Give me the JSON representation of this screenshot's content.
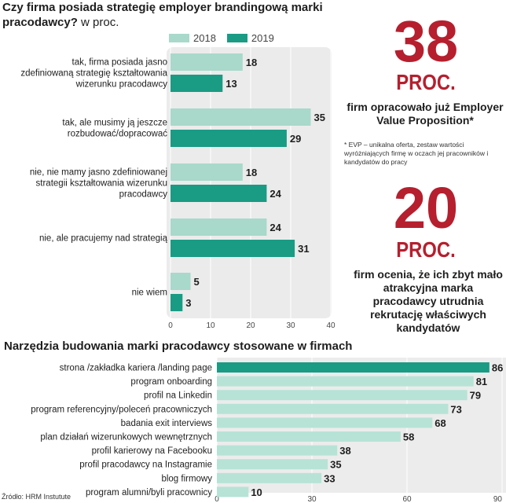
{
  "chart1_title": "Czy firma posiada strategię employer brandingową marki pracodawcy?",
  "chart1_unit": "w proc.",
  "chart2_title": "Narzędzia budowania marki pracodawcy stosowane w firmach",
  "stat1": {
    "number": "38",
    "unit": "PROC.",
    "text": "firm opracowało już Employer Value Proposition*"
  },
  "stat1_note": "* EVP – unikalna oferta, zestaw wartości wyróżniających firmę w oczach jej pracowników i kandydatów do pracy",
  "stat2": {
    "number": "20",
    "unit": "PROC.",
    "text": "firm ocenia, że ich zbyt mało atrakcyjna marka pracodawcy utrudnia rekrutację właściwych kandydatów"
  },
  "source": "Źródło: HRM Instutute",
  "colors": {
    "y2018": "#a8d9cb",
    "y2019": "#1a9b84",
    "red": "#b61f2e",
    "bar2": "#b7e3d6",
    "bar2_top": "#1a9b84"
  },
  "chart_data": [
    {
      "type": "bar",
      "orientation": "horizontal",
      "title": "Czy firma posiada strategię employer brandingową marki pracodawcy? w proc.",
      "categories": [
        [
          "tak, firma posiada jasno",
          "zdefiniowaną strategię kształtowania",
          "wizerunku pracodawcy"
        ],
        [
          "tak, ale musimy ją jeszcze",
          "rozbudować/dopracować"
        ],
        [
          "nie, nie mamy jasno zdefiniowanej",
          "strategii kształtowania wizerunku",
          "pracodawcy"
        ],
        [
          "nie, ale pracujemy nad strategią"
        ],
        [
          "nie wiem"
        ]
      ],
      "series": [
        {
          "name": "2018",
          "values": [
            18,
            35,
            18,
            24,
            5
          ]
        },
        {
          "name": "2019",
          "values": [
            13,
            29,
            24,
            31,
            3
          ]
        }
      ],
      "xlim": [
        0,
        40
      ],
      "xticks": [
        "0",
        "10",
        "20",
        "30",
        "40"
      ]
    },
    {
      "type": "bar",
      "orientation": "horizontal",
      "title": "Narzędzia budowania marki pracodawcy stosowane w firmach",
      "categories": [
        "strona /zakładka kariera /landing page",
        "program onboarding",
        "profil na Linkedin",
        "program referencyjny/poleceń pracowniczych",
        "badania exit interviews",
        "plan działań wizerunkowych wewnętrznych",
        "profil karierowy na Facebooku",
        "profil pracodawcy na Instagramie",
        "blog firmowy",
        "program alumni/byli pracownicy"
      ],
      "values": [
        86,
        81,
        79,
        73,
        68,
        58,
        38,
        35,
        33,
        10
      ],
      "xlim": [
        0,
        90
      ],
      "xticks": [
        "0",
        "30",
        "60",
        "90"
      ]
    }
  ]
}
